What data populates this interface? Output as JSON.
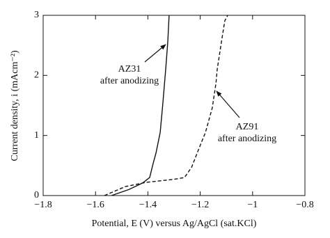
{
  "chart_data": {
    "type": "line",
    "xlabel": "Potential, E (V) versus Ag/AgCl (sat.KCl)",
    "ylabel": "Current density, i (mAcm⁻²)",
    "xlim": [
      -1.8,
      -0.8
    ],
    "ylim": [
      0,
      3
    ],
    "xticks": [
      {
        "value": -1.8,
        "label": "−1.8"
      },
      {
        "value": -1.6,
        "label": "−1.6"
      },
      {
        "value": -1.4,
        "label": "−1.4"
      },
      {
        "value": -1.2,
        "label": "−1.2"
      },
      {
        "value": -1,
        "label": "−1"
      },
      {
        "value": -0.8,
        "label": "−0.8"
      }
    ],
    "yticks": [
      0,
      1,
      2,
      3
    ],
    "grid": false,
    "series": [
      {
        "color": "#111111",
        "style": "solid",
        "x": [
          -1.539,
          -1.473,
          -1.42,
          -1.393,
          -1.38,
          -1.369,
          -1.361,
          -1.353,
          -1.343,
          -1.332,
          -1.324,
          -1.319
        ],
        "values": [
          0,
          0.1,
          0.21,
          0.3,
          0.53,
          0.71,
          0.88,
          1.05,
          1.52,
          2.1,
          2.56,
          3.0
        ]
      },
      {
        "color": "#111111",
        "style": "dashed",
        "x": [
          -1.566,
          -1.486,
          -1.406,
          -1.3,
          -1.26,
          -1.233,
          -1.207,
          -1.18,
          -1.154,
          -1.14,
          -1.135,
          -1.119,
          -1.106,
          -1.095
        ],
        "values": [
          0,
          0.15,
          0.22,
          0.27,
          0.3,
          0.47,
          0.76,
          1.05,
          1.46,
          1.87,
          2.1,
          2.56,
          2.91,
          3.0
        ]
      }
    ],
    "annotations": [
      {
        "lines": [
          "AZ31",
          "after anodizing"
        ]
      },
      {
        "lines": [
          "AZ91",
          "after anodizing"
        ]
      }
    ]
  }
}
